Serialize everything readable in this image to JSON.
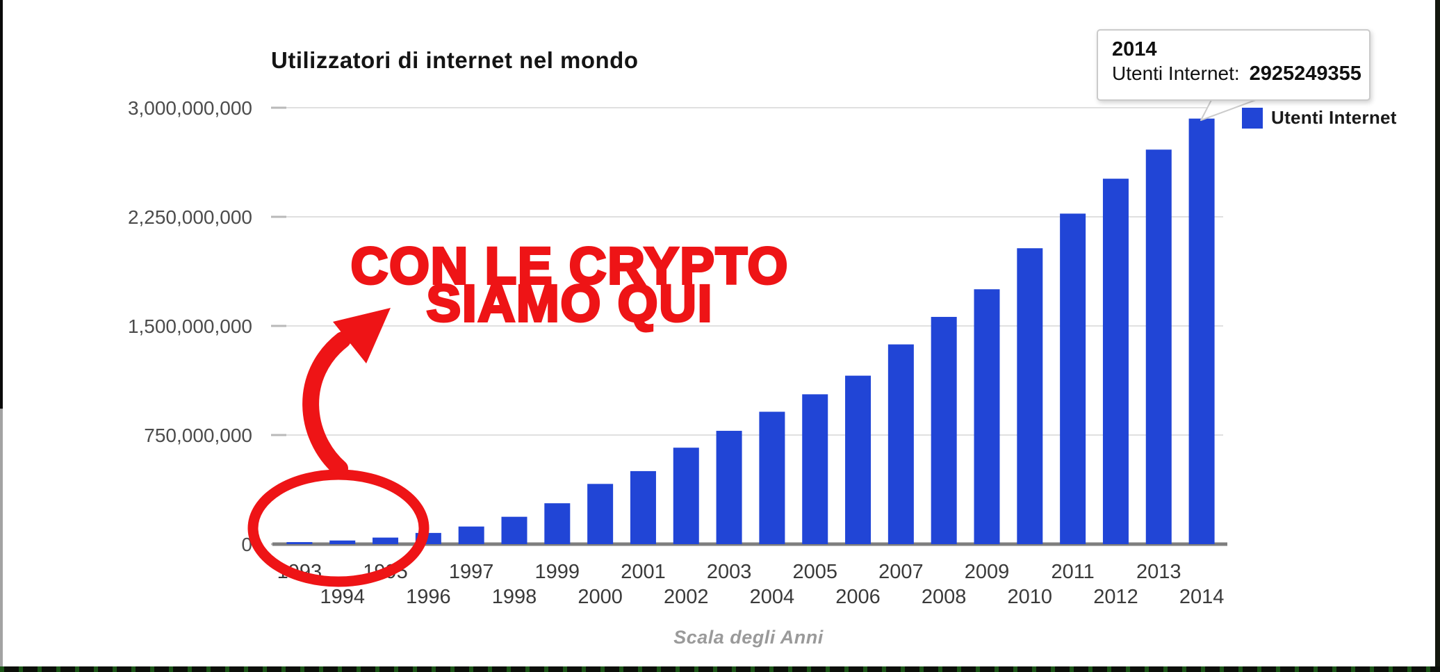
{
  "chart": {
    "title": "Utilizzatori di internet nel mondo",
    "x_axis_title": "Scala degli Anni",
    "y_ticks": [
      "3,000,000,000",
      "2,250,000,000",
      "1,500,000,000",
      "750,000,000",
      "0"
    ],
    "legend": {
      "label": "Utenti Internet",
      "color": "#2145d6"
    },
    "tooltip": {
      "year": "2014",
      "label": "Utenti Internet:",
      "value": "2925249355"
    },
    "colors": {
      "bar": "#2145d6",
      "grid": "#e0e0e0",
      "tick": "#b9b9b9",
      "axis": "#7e7e7e",
      "annotation_red": "#ee1416"
    }
  },
  "annotation": {
    "line1": "CON LE CRYPTO",
    "line2": "SIAMO QUI"
  },
  "chart_data": {
    "type": "bar",
    "title": "Utilizzatori di internet nel mondo",
    "xlabel": "Scala degli Anni",
    "ylabel": "",
    "series_name": "Utenti Internet",
    "categories": [
      "1993",
      "1994",
      "1995",
      "1996",
      "1997",
      "1998",
      "1999",
      "2000",
      "2001",
      "2002",
      "2003",
      "2004",
      "2005",
      "2006",
      "2007",
      "2008",
      "2009",
      "2010",
      "2011",
      "2012",
      "2013",
      "2014"
    ],
    "values": [
      14000000,
      25000000,
      45000000,
      77000000,
      121000000,
      188000000,
      281000000,
      414000000,
      502000000,
      663000000,
      779000000,
      910000000,
      1030000000,
      1158000000,
      1373000000,
      1562000000,
      1752000000,
      2034000000,
      2272000000,
      2512000000,
      2712000000,
      2925249355
    ],
    "ylim": [
      0,
      3000000000
    ],
    "y_tick_interval": 750000000,
    "grid": true,
    "legend_position": "top-right",
    "bar_color": "#2145d6",
    "highlighted_point": {
      "category": "2014",
      "value": 2925249355
    }
  }
}
